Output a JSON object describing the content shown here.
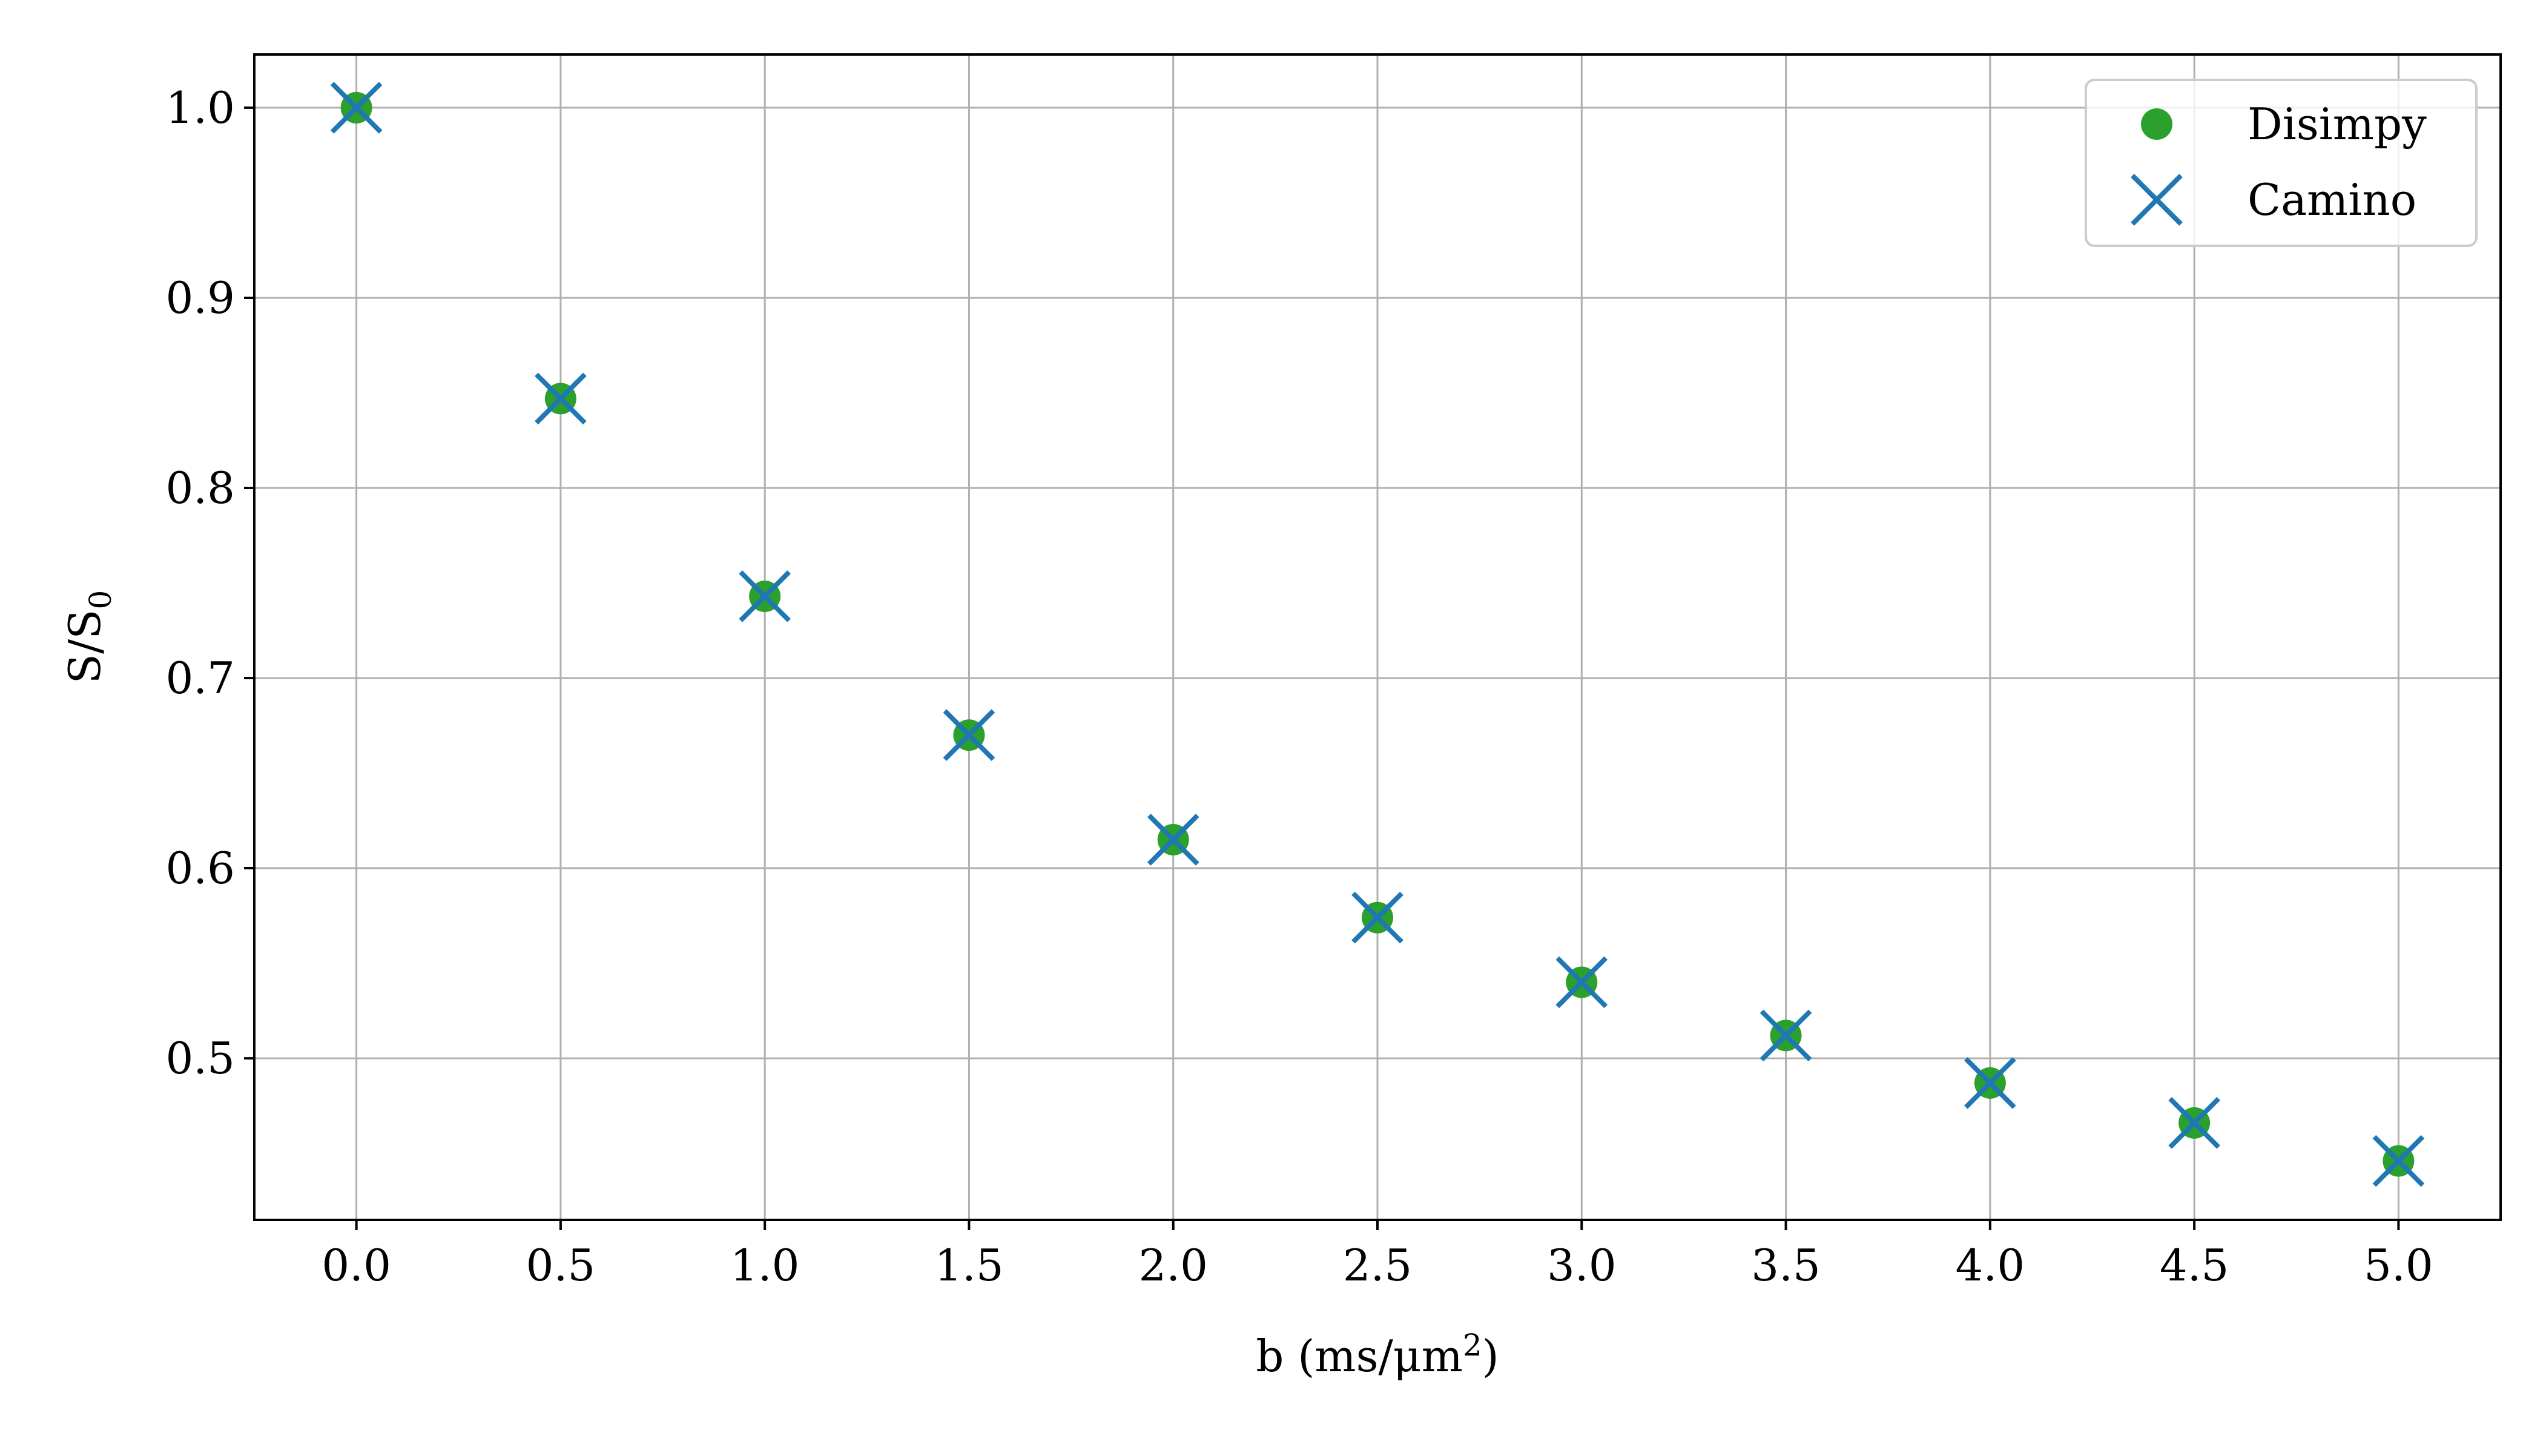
{
  "chart_data": {
    "type": "scatter",
    "xlabel": "b (ms/μm",
    "xlabel_sup": "2",
    "xlabel_tail": ")",
    "ylabel": "S/S",
    "ylabel_sub": "0",
    "xlim": [
      -0.25,
      5.25
    ],
    "ylim": [
      0.415,
      1.028
    ],
    "xticks": [
      0.0,
      0.5,
      1.0,
      1.5,
      2.0,
      2.5,
      3.0,
      3.5,
      4.0,
      4.5,
      5.0
    ],
    "xtick_labels": [
      "0.0",
      "0.5",
      "1.0",
      "1.5",
      "2.0",
      "2.5",
      "3.0",
      "3.5",
      "4.0",
      "4.5",
      "5.0"
    ],
    "yticks": [
      0.5,
      0.6,
      0.7,
      0.8,
      0.9,
      1.0
    ],
    "ytick_labels": [
      "0.5",
      "0.6",
      "0.7",
      "0.8",
      "0.9",
      "1.0"
    ],
    "grid": true,
    "legend_position": "top-right",
    "x": [
      0.0,
      0.5,
      1.0,
      1.5,
      2.0,
      2.5,
      3.0,
      3.5,
      4.0,
      4.5,
      5.0
    ],
    "series": [
      {
        "name": "Disimpy",
        "marker": "circle",
        "color": "#2ca02c",
        "values": [
          1.0,
          0.847,
          0.743,
          0.67,
          0.615,
          0.574,
          0.54,
          0.512,
          0.487,
          0.466,
          0.446
        ]
      },
      {
        "name": "Camino",
        "marker": "x",
        "color": "#1f77b4",
        "values": [
          1.0,
          0.847,
          0.743,
          0.67,
          0.615,
          0.574,
          0.54,
          0.512,
          0.487,
          0.466,
          0.446
        ]
      }
    ],
    "colors": {
      "grid": "#b0b0b0",
      "axes": "#000000",
      "legend_border": "#cccccc"
    }
  }
}
